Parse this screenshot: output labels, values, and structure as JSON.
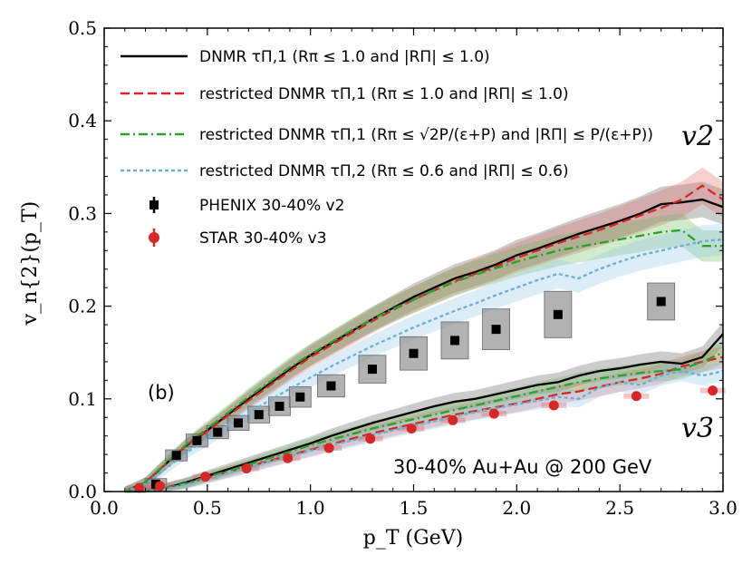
{
  "chart_data": {
    "type": "line",
    "title": "",
    "xlabel": "p_T (GeV)",
    "ylabel": "v_n{2}(p_T)",
    "xlim": [
      0.0,
      3.0
    ],
    "ylim": [
      0.0,
      0.5
    ],
    "xticks": [
      0.0,
      0.5,
      1.0,
      1.5,
      2.0,
      2.5,
      3.0
    ],
    "xtick_labels": [
      "0.0",
      "0.5",
      "1.0",
      "1.5",
      "2.0",
      "2.5",
      "3.0"
    ],
    "yticks": [
      0.0,
      0.1,
      0.2,
      0.3,
      0.4,
      0.5
    ],
    "ytick_labels": [
      "0.0",
      "0.1",
      "0.2",
      "0.3",
      "0.4",
      "0.5"
    ],
    "panel_label": "(b)",
    "system_label": "30-40% Au+Au @ 200 GeV",
    "v2_label": "v2",
    "v3_label": "v3",
    "legend_position": "top-left",
    "legend": [
      {
        "label": "DNMR τΠ,1 (Rπ ≤ 1.0 and |RΠ| ≤ 1.0)",
        "color": "#000000",
        "style": "solid"
      },
      {
        "label": "restricted DNMR τΠ,1 (Rπ ≤ 1.0 and |RΠ| ≤ 1.0)",
        "color": "#d62728",
        "style": "dashed"
      },
      {
        "label": "restricted DNMR τΠ,1 (Rπ ≤ √2P/(ε+P) and |RΠ| ≤ P/(ε+P))",
        "color": "#2ca02c",
        "style": "dashdot"
      },
      {
        "label": "restricted DNMR τΠ,2 (Rπ ≤ 0.6 and |RΠ| ≤ 0.6)",
        "color": "#6baed6",
        "style": "dotted"
      },
      {
        "label": "PHENIX 30-40% v2",
        "color": "#000000",
        "style": "square"
      },
      {
        "label": "STAR 30-40% v3",
        "color": "#d62728",
        "style": "circle"
      }
    ],
    "x": [
      0.1,
      0.2,
      0.3,
      0.4,
      0.5,
      0.6,
      0.7,
      0.8,
      0.9,
      1.0,
      1.1,
      1.2,
      1.3,
      1.4,
      1.5,
      1.6,
      1.7,
      1.8,
      1.9,
      2.0,
      2.1,
      2.2,
      2.3,
      2.4,
      2.5,
      2.6,
      2.7,
      2.8,
      2.9,
      3.0
    ],
    "series": [
      {
        "name": "DNMR τΠ,1 v2",
        "color": "#000000",
        "style": "solid",
        "band": "#555555",
        "values": [
          0.0,
          0.01,
          0.03,
          0.05,
          0.066,
          0.083,
          0.1,
          0.116,
          0.132,
          0.147,
          0.16,
          0.173,
          0.186,
          0.198,
          0.21,
          0.22,
          0.23,
          0.237,
          0.245,
          0.255,
          0.262,
          0.27,
          0.278,
          0.285,
          0.292,
          0.3,
          0.31,
          0.312,
          0.315,
          0.307
        ]
      },
      {
        "name": "restricted DNMR τΠ,1 v2",
        "color": "#d62728",
        "style": "dashed",
        "band": "#e06060",
        "values": [
          0.0,
          0.01,
          0.03,
          0.05,
          0.065,
          0.082,
          0.098,
          0.114,
          0.13,
          0.145,
          0.158,
          0.171,
          0.184,
          0.196,
          0.207,
          0.217,
          0.227,
          0.235,
          0.243,
          0.252,
          0.26,
          0.268,
          0.275,
          0.282,
          0.29,
          0.298,
          0.306,
          0.315,
          0.33,
          0.315
        ]
      },
      {
        "name": "restricted DNMR τΠ,1 (P-dependent) v2",
        "color": "#2ca02c",
        "style": "dashdot",
        "band": "#66bb55",
        "values": [
          0.0,
          0.01,
          0.031,
          0.051,
          0.068,
          0.085,
          0.102,
          0.118,
          0.134,
          0.148,
          0.161,
          0.174,
          0.186,
          0.197,
          0.207,
          0.217,
          0.226,
          0.234,
          0.241,
          0.248,
          0.254,
          0.26,
          0.264,
          0.268,
          0.272,
          0.276,
          0.28,
          0.282,
          0.265,
          0.265
        ]
      },
      {
        "name": "restricted DNMR τΠ,2 v2",
        "color": "#6baed6",
        "style": "dotted",
        "band": "#8cc4e8",
        "values": [
          0.0,
          0.008,
          0.025,
          0.042,
          0.057,
          0.071,
          0.085,
          0.098,
          0.111,
          0.123,
          0.135,
          0.146,
          0.157,
          0.167,
          0.177,
          0.186,
          0.195,
          0.203,
          0.212,
          0.22,
          0.228,
          0.235,
          0.23,
          0.24,
          0.248,
          0.255,
          0.26,
          0.265,
          0.27,
          0.272
        ]
      },
      {
        "name": "DNMR τΠ,1 v3",
        "color": "#000000",
        "style": "solid",
        "band": "#555555",
        "values": [
          0.0,
          0.0,
          0.004,
          0.01,
          0.017,
          0.024,
          0.031,
          0.038,
          0.045,
          0.052,
          0.06,
          0.067,
          0.074,
          0.08,
          0.086,
          0.092,
          0.097,
          0.1,
          0.105,
          0.11,
          0.115,
          0.118,
          0.125,
          0.13,
          0.133,
          0.137,
          0.14,
          0.138,
          0.145,
          0.17
        ]
      },
      {
        "name": "restricted DNMR τΠ,1 v3",
        "color": "#d62728",
        "style": "dashed",
        "band": "#e06060",
        "values": [
          0.0,
          0.0,
          0.004,
          0.009,
          0.015,
          0.021,
          0.027,
          0.033,
          0.039,
          0.045,
          0.051,
          0.057,
          0.063,
          0.068,
          0.073,
          0.078,
          0.083,
          0.087,
          0.091,
          0.095,
          0.1,
          0.105,
          0.108,
          0.113,
          0.118,
          0.122,
          0.127,
          0.135,
          0.14,
          0.145
        ]
      },
      {
        "name": "restricted DNMR τΠ,1 (P-dependent) v3",
        "color": "#2ca02c",
        "style": "dashdot",
        "band": "#66bb55",
        "values": [
          0.0,
          0.0,
          0.004,
          0.009,
          0.016,
          0.022,
          0.029,
          0.036,
          0.043,
          0.05,
          0.056,
          0.062,
          0.068,
          0.073,
          0.078,
          0.083,
          0.088,
          0.093,
          0.098,
          0.103,
          0.108,
          0.113,
          0.118,
          0.122,
          0.125,
          0.128,
          0.13,
          0.132,
          0.14,
          0.15
        ]
      },
      {
        "name": "restricted DNMR τΠ,2 v3",
        "color": "#6baed6",
        "style": "dotted",
        "band": "#8cc4e8",
        "values": [
          0.0,
          0.0,
          0.003,
          0.008,
          0.014,
          0.02,
          0.026,
          0.032,
          0.038,
          0.044,
          0.05,
          0.055,
          0.061,
          0.066,
          0.071,
          0.076,
          0.081,
          0.086,
          0.09,
          0.094,
          0.098,
          0.102,
          0.1,
          0.112,
          0.118,
          0.115,
          0.125,
          0.13,
          0.125,
          0.13
        ]
      }
    ],
    "phenix_v2": {
      "x": [
        0.25,
        0.35,
        0.45,
        0.55,
        0.65,
        0.75,
        0.85,
        0.95,
        1.1,
        1.3,
        1.5,
        1.7,
        1.9,
        2.2,
        2.7
      ],
      "y": [
        0.008,
        0.039,
        0.055,
        0.064,
        0.074,
        0.083,
        0.092,
        0.102,
        0.114,
        0.132,
        0.149,
        0.163,
        0.175,
        0.191,
        0.205
      ],
      "sys": [
        0.006,
        0.006,
        0.007,
        0.007,
        0.008,
        0.009,
        0.01,
        0.011,
        0.012,
        0.015,
        0.018,
        0.02,
        0.022,
        0.025,
        0.02
      ]
    },
    "star_v3": {
      "x": [
        0.17,
        0.27,
        0.49,
        0.69,
        0.89,
        1.09,
        1.29,
        1.49,
        1.69,
        1.89,
        2.18,
        2.58,
        2.95
      ],
      "y": [
        0.004,
        0.006,
        0.016,
        0.025,
        0.036,
        0.047,
        0.057,
        0.068,
        0.077,
        0.084,
        0.093,
        0.103,
        0.109
      ]
    }
  }
}
